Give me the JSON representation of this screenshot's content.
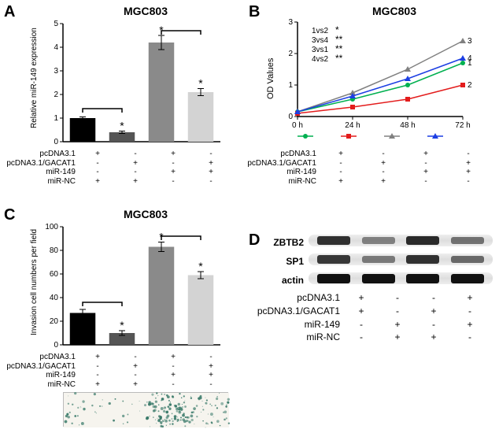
{
  "panelA": {
    "label": "A",
    "title": "MGC803",
    "ylabel": "Relative miR-149 expression",
    "ylim": [
      0,
      5
    ],
    "ytick_step": 1,
    "bars": [
      {
        "value": 1.0,
        "err": 0.05,
        "color": "#000000",
        "sig": ""
      },
      {
        "value": 0.4,
        "err": 0.05,
        "color": "#555555",
        "sig": "*"
      },
      {
        "value": 4.2,
        "err": 0.3,
        "color": "#8a8a8a",
        "sig": "*"
      },
      {
        "value": 2.1,
        "err": 0.15,
        "color": "#d3d3d3",
        "sig": "*"
      }
    ],
    "brackets": [
      {
        "from": 0,
        "to": 1,
        "y": 1.4
      },
      {
        "from": 2,
        "to": 3,
        "y": 4.7
      }
    ],
    "conds": {
      "rows": [
        "pcDNA3.1",
        "pcDNA3.1/GACAT1",
        "miR-149",
        "miR-NC"
      ],
      "cols": [
        [
          "+",
          "-",
          "-",
          "+"
        ],
        [
          "-",
          "+",
          "-",
          "+"
        ],
        [
          "+",
          "-",
          "+",
          "-"
        ],
        [
          "-",
          "+",
          "+",
          "-"
        ]
      ]
    }
  },
  "panelB": {
    "label": "B",
    "title": "MGC803",
    "ylabel": "OD Values",
    "xlabel_pts": [
      "0 h",
      "24 h",
      "48 h",
      "72 h"
    ],
    "ylim": [
      0,
      3
    ],
    "ytick_step": 1,
    "series": [
      {
        "id": 1,
        "color": "#00b050",
        "marker": "circle",
        "values": [
          0.15,
          0.55,
          1.0,
          1.7
        ],
        "tag": "1"
      },
      {
        "id": 2,
        "color": "#e31c1c",
        "marker": "square",
        "values": [
          0.1,
          0.3,
          0.55,
          1.0
        ],
        "tag": "2"
      },
      {
        "id": 3,
        "color": "#808080",
        "marker": "triangle",
        "values": [
          0.15,
          0.75,
          1.5,
          2.4
        ],
        "tag": "3"
      },
      {
        "id": 4,
        "color": "#1c3fe3",
        "marker": "triangle",
        "values": [
          0.15,
          0.65,
          1.2,
          1.85
        ],
        "tag": "4"
      }
    ],
    "comparisons": [
      {
        "text": "1vs2",
        "sig": "*"
      },
      {
        "text": "3vs4",
        "sig": "**"
      },
      {
        "text": "3vs1",
        "sig": "**"
      },
      {
        "text": "4vs2",
        "sig": "**"
      }
    ],
    "legend_markers": [
      {
        "color": "#00b050",
        "shape": "circle"
      },
      {
        "color": "#e31c1c",
        "shape": "square"
      },
      {
        "color": "#808080",
        "shape": "triangle"
      },
      {
        "color": "#1c3fe3",
        "shape": "triangle"
      }
    ],
    "conds": {
      "rows": [
        "pcDNA3.1",
        "pcDNA3.1/GACAT1",
        "miR-149",
        "miR-NC"
      ],
      "cols": [
        [
          "+",
          "-",
          "-",
          "+"
        ],
        [
          "-",
          "+",
          "-",
          "+"
        ],
        [
          "+",
          "-",
          "+",
          "-"
        ],
        [
          "-",
          "+",
          "+",
          "-"
        ]
      ]
    }
  },
  "panelC": {
    "label": "C",
    "title": "MGC803",
    "ylabel": "Invasion cell numbers per field",
    "ylim": [
      0,
      100
    ],
    "ytick_step": 20,
    "bars": [
      {
        "value": 27,
        "err": 3,
        "color": "#000000",
        "sig": ""
      },
      {
        "value": 10,
        "err": 2,
        "color": "#555555",
        "sig": "*"
      },
      {
        "value": 83,
        "err": 4,
        "color": "#8a8a8a",
        "sig": "*"
      },
      {
        "value": 59,
        "err": 3,
        "color": "#d3d3d3",
        "sig": "*"
      }
    ],
    "brackets": [
      {
        "from": 0,
        "to": 1,
        "y": 36
      },
      {
        "from": 2,
        "to": 3,
        "y": 92
      }
    ],
    "conds": {
      "rows": [
        "pcDNA3.1",
        "pcDNA3.1/GACAT1",
        "miR-149",
        "miR-NC"
      ],
      "cols": [
        [
          "+",
          "-",
          "-",
          "+"
        ],
        [
          "-",
          "+",
          "-",
          "+"
        ],
        [
          "+",
          "-",
          "+",
          "-"
        ],
        [
          "-",
          "+",
          "+",
          "-"
        ]
      ]
    },
    "photo_dot_color": "#3a7a6a"
  },
  "panelD": {
    "label": "D",
    "blots": [
      {
        "name": "ZBTB2",
        "intensities": [
          0.9,
          0.35,
          0.95,
          0.45
        ],
        "color": "#222"
      },
      {
        "name": "SP1",
        "intensities": [
          0.85,
          0.4,
          0.9,
          0.5
        ],
        "color": "#222"
      },
      {
        "name": "actin",
        "intensities": [
          1,
          1,
          1,
          1
        ],
        "color": "#111"
      }
    ],
    "band_width": 42,
    "conds": {
      "rows": [
        "pcDNA3.1",
        "pcDNA3.1/GACAT1",
        "miR-149",
        "miR-NC"
      ],
      "cols": [
        [
          "+",
          "+",
          "-",
          "-"
        ],
        [
          "-",
          "-",
          "+",
          "+"
        ],
        [
          "-",
          "+",
          "-",
          "+"
        ],
        [
          "+",
          "-",
          "+",
          "-"
        ]
      ]
    }
  }
}
